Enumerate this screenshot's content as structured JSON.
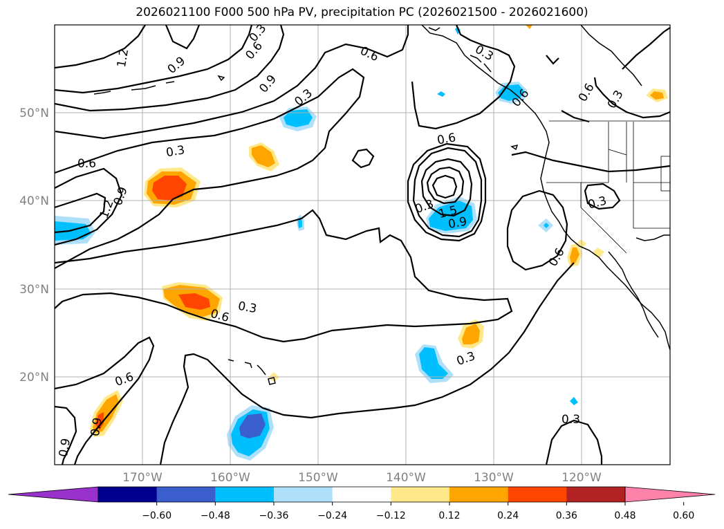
{
  "title": "2026021100 F000 500 hPa PV, precipitation PC (2026021500 - 2026021600)",
  "map": {
    "lat_labels": [
      "50°N",
      "40°N",
      "30°N",
      "20°N"
    ],
    "lon_labels": [
      "170°W",
      "160°W",
      "150°W",
      "140°W",
      "130°W",
      "120°W"
    ],
    "contour_labels": [
      "1.2",
      "0.9",
      "0.9",
      "0.6",
      "0.3",
      "0.6",
      "0.3",
      "0.6",
      "1.2",
      "0.9",
      "0.3",
      "0.6",
      "0.3",
      "0.6",
      "0.3",
      "0.6",
      "1.5",
      "0.9",
      "0.3",
      "0.6",
      "0.3",
      "0.6",
      "0.3",
      "0.9",
      "0.9",
      "0.3",
      "0.6",
      "0.3"
    ],
    "colors": {
      "neg_060": "#9932cc",
      "neg_048": "#000090",
      "neg_036": "#3a5fcd",
      "neg_024": "#00bfff",
      "neg_012": "#aee0fa",
      "pos_012": "#ffe88a",
      "pos_024": "#ffa500",
      "pos_036": "#ff4500",
      "pos_048": "#b22222",
      "pos_060": "#ff82ab"
    }
  },
  "colorbar": {
    "levels": [
      "−0.60",
      "−0.48",
      "−0.36",
      "−0.24",
      "−0.12",
      "0.12",
      "0.24",
      "0.36",
      "0.48",
      "0.60"
    ],
    "colors": [
      "#9932cc",
      "#000090",
      "#3a5fcd",
      "#00bfff",
      "#aee0fa",
      "#ffffff",
      "#ffe88a",
      "#ffa500",
      "#ff4500",
      "#b22222",
      "#ff82ab"
    ]
  }
}
